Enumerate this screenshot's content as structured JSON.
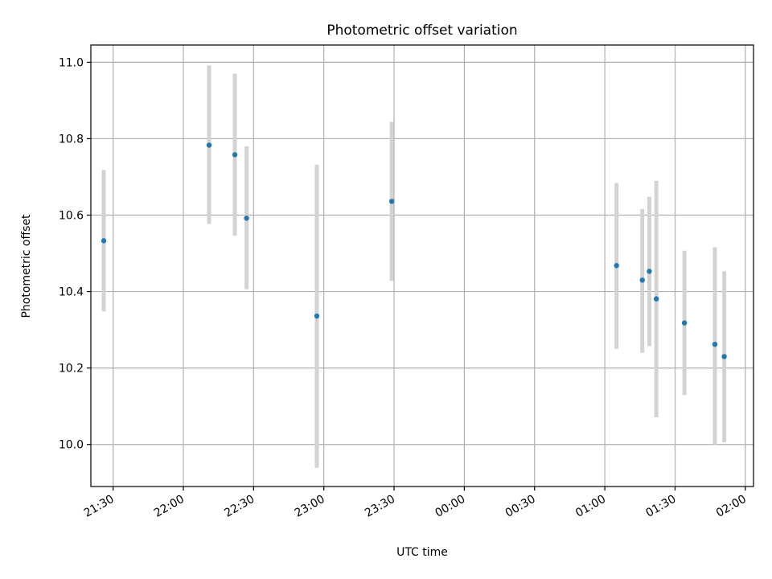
{
  "chart_data": {
    "type": "scatter",
    "title": "Photometric offset variation",
    "xlabel": "UTC time",
    "ylabel": "Photometric offset",
    "x_ticks": [
      "21:30",
      "22:00",
      "22:30",
      "23:00",
      "23:30",
      "00:00",
      "00:30",
      "01:00",
      "01:30",
      "02:00"
    ],
    "y_ticks": [
      "10.0",
      "10.2",
      "10.4",
      "10.6",
      "10.8",
      "11.0"
    ],
    "xlim": [
      "21:20:30",
      "02:03:30"
    ],
    "ylim": [
      9.89,
      11.045
    ],
    "grid": true,
    "colors": {
      "point": "#1f77b4",
      "errorbar": "#d3d3d3",
      "grid": "#b0b0b0"
    },
    "series": [
      {
        "points": [
          {
            "x": "21:26",
            "y": 10.533,
            "yerr_low": 10.348,
            "yerr_high": 10.718
          },
          {
            "x": "22:11",
            "y": 10.783,
            "yerr_low": 10.577,
            "yerr_high": 10.992
          },
          {
            "x": "22:22",
            "y": 10.758,
            "yerr_low": 10.546,
            "yerr_high": 10.97
          },
          {
            "x": "22:27",
            "y": 10.592,
            "yerr_low": 10.406,
            "yerr_high": 10.78
          },
          {
            "x": "22:57",
            "y": 10.336,
            "yerr_low": 9.939,
            "yerr_high": 10.732
          },
          {
            "x": "23:29",
            "y": 10.636,
            "yerr_low": 10.428,
            "yerr_high": 10.844
          },
          {
            "x": "01:05",
            "y": 10.468,
            "yerr_low": 10.25,
            "yerr_high": 10.684
          },
          {
            "x": "01:16",
            "y": 10.43,
            "yerr_low": 10.24,
            "yerr_high": 10.616
          },
          {
            "x": "01:19",
            "y": 10.453,
            "yerr_low": 10.257,
            "yerr_high": 10.648
          },
          {
            "x": "01:22",
            "y": 10.381,
            "yerr_low": 10.071,
            "yerr_high": 10.69
          },
          {
            "x": "01:34",
            "y": 10.318,
            "yerr_low": 10.129,
            "yerr_high": 10.507
          },
          {
            "x": "01:47",
            "y": 10.262,
            "yerr_low": 10.0,
            "yerr_high": 10.516
          },
          {
            "x": "01:51",
            "y": 10.23,
            "yerr_low": 10.006,
            "yerr_high": 10.453
          }
        ]
      }
    ]
  }
}
